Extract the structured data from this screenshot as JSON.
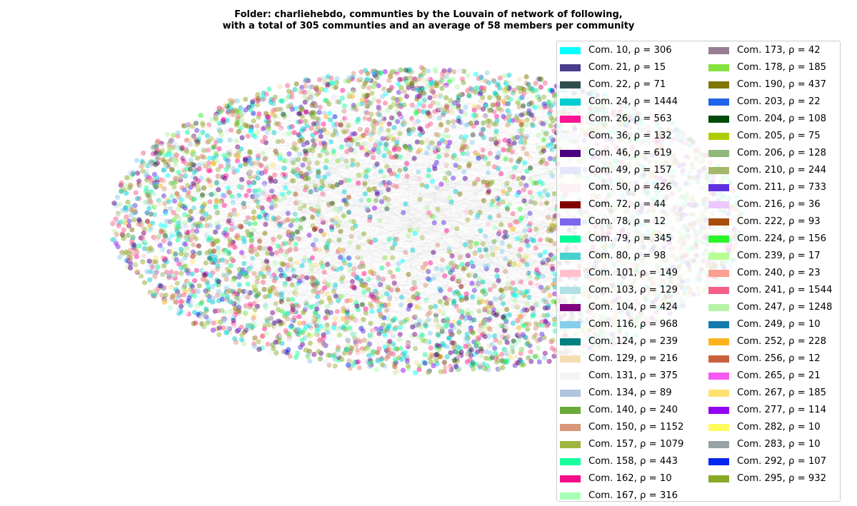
{
  "chart_data": {
    "type": "scatter",
    "title_lines": [
      "Folder: charliehebdo, communties by the Louvain of network of following,",
      "with a total of 305 communties and an average of 58 members per community"
    ],
    "xlabel": "",
    "ylabel": "",
    "grid": false,
    "axes_visible": false,
    "legend_placement": "right",
    "legend_columns": 2,
    "point_layout": "dense elliptical cloud of semi-transparent nodes",
    "series": [
      {
        "label": "Com. 10, ρ = 306",
        "community": 10,
        "members": 306,
        "color": "#00ffff"
      },
      {
        "label": "Com. 21, ρ = 15",
        "community": 21,
        "members": 15,
        "color": "#483d8b"
      },
      {
        "label": "Com. 22, ρ = 71",
        "community": 22,
        "members": 71,
        "color": "#2f4f4f"
      },
      {
        "label": "Com. 24, ρ = 1444",
        "community": 24,
        "members": 1444,
        "color": "#00ced1"
      },
      {
        "label": "Com. 26, ρ = 563",
        "community": 26,
        "members": 563,
        "color": "#ff1493"
      },
      {
        "label": "Com. 36, ρ = 132",
        "community": 36,
        "members": 132,
        "color": "#f8f8ff"
      },
      {
        "label": "Com. 46, ρ = 619",
        "community": 46,
        "members": 619,
        "color": "#4b0082"
      },
      {
        "label": "Com. 49, ρ = 157",
        "community": 49,
        "members": 157,
        "color": "#e6e6fa"
      },
      {
        "label": "Com. 50, ρ = 426",
        "community": 50,
        "members": 426,
        "color": "#fff0f5"
      },
      {
        "label": "Com. 72, ρ = 44",
        "community": 72,
        "members": 44,
        "color": "#800000"
      },
      {
        "label": "Com. 78, ρ = 12",
        "community": 78,
        "members": 12,
        "color": "#7b68ee"
      },
      {
        "label": "Com. 79, ρ = 345",
        "community": 79,
        "members": 345,
        "color": "#00fa9a"
      },
      {
        "label": "Com. 80, ρ = 98",
        "community": 80,
        "members": 98,
        "color": "#48d1cc"
      },
      {
        "label": "Com. 101, ρ = 149",
        "community": 101,
        "members": 149,
        "color": "#ffc0cb"
      },
      {
        "label": "Com. 103, ρ = 129",
        "community": 103,
        "members": 129,
        "color": "#b0e0e6"
      },
      {
        "label": "Com. 104, ρ = 424",
        "community": 104,
        "members": 424,
        "color": "#800080"
      },
      {
        "label": "Com. 116, ρ = 968",
        "community": 116,
        "members": 968,
        "color": "#87ceeb"
      },
      {
        "label": "Com. 124, ρ = 239",
        "community": 124,
        "members": 239,
        "color": "#008080"
      },
      {
        "label": "Com. 129, ρ = 216",
        "community": 129,
        "members": 216,
        "color": "#f5deb3"
      },
      {
        "label": "Com. 131, ρ = 375",
        "community": 131,
        "members": 375,
        "color": "#f5f5f5"
      },
      {
        "label": "Com. 134, ρ = 89",
        "community": 134,
        "members": 89,
        "color": "#b0c4de"
      },
      {
        "label": "Com. 140, ρ = 240",
        "community": 140,
        "members": 240,
        "color": "#6aaa3a"
      },
      {
        "label": "Com. 150, ρ = 1152",
        "community": 150,
        "members": 1152,
        "color": "#d8967a"
      },
      {
        "label": "Com. 157, ρ = 1079",
        "community": 157,
        "members": 1079,
        "color": "#9fb53f"
      },
      {
        "label": "Com. 158, ρ = 443",
        "community": 158,
        "members": 443,
        "color": "#19ff9f"
      },
      {
        "label": "Com. 162, ρ = 10",
        "community": 162,
        "members": 10,
        "color": "#f20f86"
      },
      {
        "label": "Com. 167, ρ = 316",
        "community": 167,
        "members": 316,
        "color": "#a6ffb8"
      },
      {
        "label": "Com. 173, ρ = 42",
        "community": 173,
        "members": 42,
        "color": "#967e96"
      },
      {
        "label": "Com. 178, ρ = 185",
        "community": 178,
        "members": 185,
        "color": "#86e23c"
      },
      {
        "label": "Com. 190, ρ = 437",
        "community": 190,
        "members": 437,
        "color": "#807600"
      },
      {
        "label": "Com. 203, ρ = 22",
        "community": 203,
        "members": 22,
        "color": "#1f63e8"
      },
      {
        "label": "Com. 204, ρ = 108",
        "community": 204,
        "members": 108,
        "color": "#004a0a"
      },
      {
        "label": "Com. 205, ρ = 75",
        "community": 205,
        "members": 75,
        "color": "#b0cb00"
      },
      {
        "label": "Com. 206, ρ = 128",
        "community": 206,
        "members": 128,
        "color": "#8fb87a"
      },
      {
        "label": "Com. 210, ρ = 244",
        "community": 210,
        "members": 244,
        "color": "#a6b86b"
      },
      {
        "label": "Com. 211, ρ = 733",
        "community": 211,
        "members": 733,
        "color": "#6030e0"
      },
      {
        "label": "Com. 216, ρ = 36",
        "community": 216,
        "members": 36,
        "color": "#ecc8ff"
      },
      {
        "label": "Com. 222, ρ = 93",
        "community": 222,
        "members": 93,
        "color": "#a84e0c"
      },
      {
        "label": "Com. 224, ρ = 156",
        "community": 224,
        "members": 156,
        "color": "#2af528"
      },
      {
        "label": "Com. 239, ρ = 17",
        "community": 239,
        "members": 17,
        "color": "#b6ff90"
      },
      {
        "label": "Com. 240, ρ = 23",
        "community": 240,
        "members": 23,
        "color": "#fba08e"
      },
      {
        "label": "Com. 241, ρ = 1544",
        "community": 241,
        "members": 1544,
        "color": "#f56088"
      },
      {
        "label": "Com. 247, ρ = 1248",
        "community": 247,
        "members": 1248,
        "color": "#b8f2a6"
      },
      {
        "label": "Com. 249, ρ = 10",
        "community": 249,
        "members": 10,
        "color": "#137aae"
      },
      {
        "label": "Com. 252, ρ = 228",
        "community": 252,
        "members": 228,
        "color": "#fbb420"
      },
      {
        "label": "Com. 256, ρ = 12",
        "community": 256,
        "members": 12,
        "color": "#c8623e"
      },
      {
        "label": "Com. 265, ρ = 21",
        "community": 265,
        "members": 21,
        "color": "#f659f2"
      },
      {
        "label": "Com. 267, ρ = 185",
        "community": 267,
        "members": 185,
        "color": "#fde170"
      },
      {
        "label": "Com. 277, ρ = 114",
        "community": 277,
        "members": 114,
        "color": "#9205f2"
      },
      {
        "label": "Com. 282, ρ = 10",
        "community": 282,
        "members": 10,
        "color": "#fefb5e"
      },
      {
        "label": "Com. 283, ρ = 10",
        "community": 283,
        "members": 10,
        "color": "#96a3a6"
      },
      {
        "label": "Com. 292, ρ = 107",
        "community": 292,
        "members": 107,
        "color": "#0526f0"
      },
      {
        "label": "Com. 295, ρ = 932",
        "community": 295,
        "members": 932,
        "color": "#8aa926"
      }
    ]
  }
}
